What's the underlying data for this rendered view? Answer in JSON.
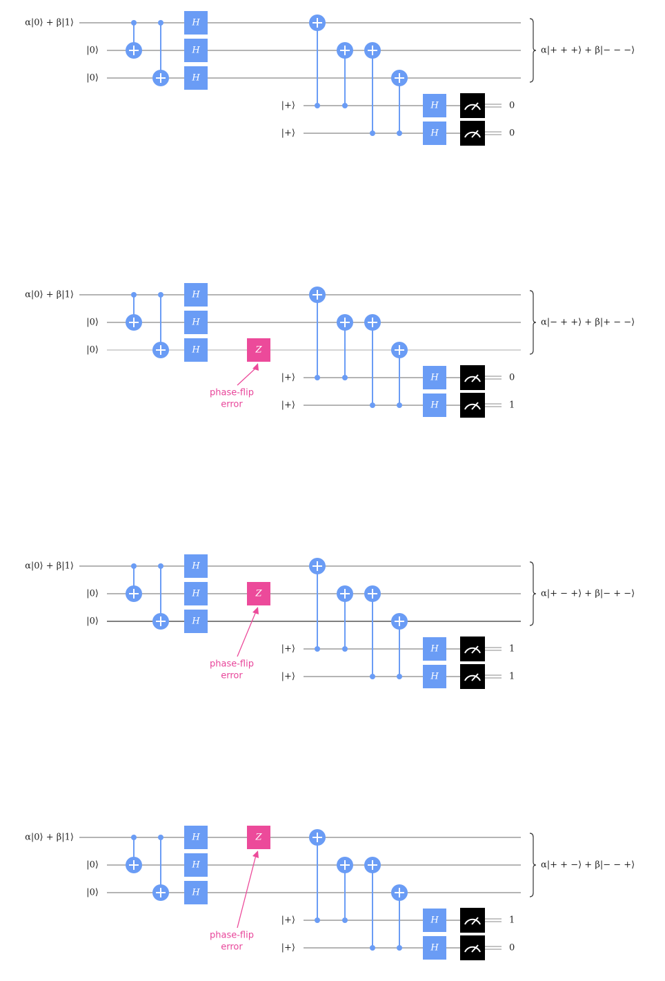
{
  "colors": {
    "wire": "#888888",
    "wire_dark": "#333333",
    "wire_light": "#bbbbbb",
    "gate_blue": "#6a9cf5",
    "z_gate": "#ec4a9a",
    "error_text": "#e8459a",
    "measure_box": "#000000",
    "text": "#222222"
  },
  "labels": {
    "input_qubit": "α|0⟩ + β|1⟩",
    "zero_ket": "|0⟩",
    "plus_ket": "|+⟩",
    "hadamard": "H",
    "z_gate": "Z",
    "error_line1": "phase-flip",
    "error_line2": "error"
  },
  "circuits": [
    {
      "output_state": "α|+ + +⟩ + β|− − −⟩",
      "error_qubit": null,
      "measurements": [
        "0",
        "0"
      ]
    },
    {
      "output_state": "α|− + +⟩ + β|+ − −⟩",
      "error_qubit": 2,
      "measurements": [
        "0",
        "1"
      ]
    },
    {
      "output_state": "α|+ − +⟩ + β|− + −⟩",
      "error_qubit": 1,
      "measurements": [
        "1",
        "1"
      ]
    },
    {
      "output_state": "α|+ + −⟩ + β|− − +⟩",
      "error_qubit": 0,
      "measurements": [
        "1",
        "0"
      ]
    }
  ]
}
